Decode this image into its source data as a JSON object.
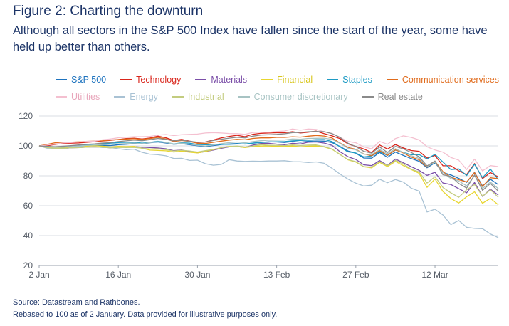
{
  "header": {
    "title": "Figure 2: Charting the downturn",
    "subtitle": "Although all sectors in the S&P 500 Index have fallen since the start of the year, some have held up better than others."
  },
  "footer": {
    "source": "Source: Datastream and Rathbones.",
    "note": "Rebased to 100 as of 2 January. Data provided for illustrative purposes only."
  },
  "chart_data": {
    "type": "line",
    "title": "",
    "xlabel": "",
    "ylabel": "",
    "ylim": [
      20,
      120
    ],
    "yticks": [
      20,
      40,
      60,
      80,
      100,
      120
    ],
    "x_tick_labels": [
      "2 Jan",
      "16 Jan",
      "30 Jan",
      "13 Feb",
      "27 Feb",
      "12 Mar"
    ],
    "x_tick_positions": [
      0,
      10,
      20,
      30,
      40,
      50
    ],
    "grid": "horizontal",
    "legend_placement": "top",
    "series": [
      {
        "name": "S&P 500",
        "color": "#1e73be",
        "values": [
          100,
          99,
          98.5,
          98.8,
          99.2,
          99.6,
          99.9,
          100.3,
          100.4,
          100.2,
          100.8,
          101.1,
          101.5,
          101.3,
          102.1,
          102.6,
          101.9,
          101.1,
          101.5,
          100.8,
          100.1,
          99.5,
          100.2,
          100.9,
          101.3,
          101.6,
          101.2,
          101.9,
          102.4,
          102.7,
          102.6,
          102.3,
          102.9,
          102.5,
          103.1,
          103.3,
          103.2,
          102.2,
          99.6,
          96.6,
          95.1,
          91.9,
          91.8,
          95.6,
          92.4,
          95.9,
          93.6,
          91.5,
          89.7,
          85.4,
          88.7,
          82.3,
          80.6,
          78.3,
          75.6,
          82.3,
          73.2,
          77.7,
          74.1
        ]
      },
      {
        "name": "Technology",
        "color": "#d9261c",
        "values": [
          100,
          100.1,
          101,
          101.6,
          101.8,
          102,
          102.4,
          102.8,
          103.3,
          103.7,
          104.3,
          104.9,
          105.2,
          104.6,
          105.3,
          106.5,
          105.5,
          103.6,
          104.4,
          103.2,
          102.2,
          102.6,
          104,
          105.4,
          106.4,
          107.1,
          106.2,
          107.8,
          108.4,
          108.6,
          108.8,
          108.8,
          109.5,
          108.6,
          109.2,
          109.9,
          108.2,
          106.7,
          104.9,
          101.4,
          99.6,
          98,
          95.5,
          100.6,
          97.9,
          100.9,
          98.6,
          96.9,
          96.4,
          91.9,
          93.6,
          86.7,
          86.7,
          83.4,
          80.8,
          88.2,
          78.2,
          82.2,
          79.2
        ]
      },
      {
        "name": "Materials",
        "color": "#7b4fa8",
        "values": [
          100,
          98.8,
          98.4,
          98.3,
          98.7,
          98.9,
          99.2,
          99.3,
          99.1,
          98.7,
          99.2,
          99.3,
          99.5,
          99.1,
          98.9,
          98.6,
          98.1,
          96.8,
          97.3,
          96.2,
          95.4,
          96.2,
          97.2,
          98.4,
          99.4,
          99.5,
          99,
          100.5,
          101.6,
          101.7,
          101.2,
          100.8,
          101.7,
          101.3,
          102.5,
          102.6,
          101.9,
          100.4,
          96.1,
          92.8,
          90.9,
          87.4,
          86.8,
          90.2,
          87,
          91.2,
          88.7,
          86.1,
          83.6,
          80.3,
          82.4,
          75.2,
          74.2,
          71.4,
          68.6,
          75.5,
          66.2,
          71,
          67.1
        ]
      },
      {
        "name": "Financial",
        "color": "#e8d630",
        "values": [
          100,
          99.1,
          98.5,
          98.6,
          99,
          99.5,
          99.8,
          100.1,
          99.8,
          99.3,
          99.7,
          99.5,
          99.7,
          98.4,
          97.2,
          97,
          96.7,
          95.9,
          96.5,
          95.8,
          95.3,
          96.3,
          97.5,
          98.8,
          99.7,
          99.6,
          98.9,
          99.6,
          99.9,
          99.9,
          99.7,
          99.6,
          99.9,
          99.4,
          99.8,
          99.9,
          99.3,
          97.7,
          94.4,
          90.7,
          89.2,
          86.1,
          85.3,
          89,
          86.2,
          89.6,
          86.8,
          84.2,
          81.6,
          72.3,
          77.9,
          69.5,
          64.8,
          61.8,
          66,
          69.3,
          61.6,
          64.9,
          60.6
        ]
      },
      {
        "name": "Staples",
        "color": "#1e9bc4",
        "values": [
          100,
          99.7,
          99.3,
          99.5,
          99.9,
          100.5,
          100.8,
          101.1,
          101.5,
          101.8,
          102.2,
          102.4,
          102.5,
          101.8,
          102.4,
          103.1,
          102.4,
          101.3,
          102.1,
          101.8,
          100.9,
          100.8,
          100.8,
          101,
          101,
          101.3,
          101.3,
          101.8,
          102.2,
          102.6,
          102.8,
          102.9,
          103.4,
          103.6,
          103.8,
          104.2,
          104.3,
          102.9,
          99.4,
          96,
          95.3,
          92.6,
          93.3,
          96.2,
          93.6,
          97.2,
          95.7,
          94.1,
          94.2,
          91.3,
          94.4,
          89.2,
          84.2,
          84.6,
          80.2,
          87.7,
          78.7,
          84.5,
          77.4
        ]
      },
      {
        "name": "Communication services",
        "color": "#e06b1c",
        "values": [
          100,
          101,
          102.1,
          102.4,
          102.5,
          102.7,
          103,
          103.3,
          103.5,
          103.9,
          104.3,
          104.6,
          104.8,
          104.4,
          104.9,
          105.7,
          104.7,
          103,
          103.6,
          102.9,
          101.7,
          101.6,
          102.4,
          103.2,
          103.9,
          104.4,
          104.1,
          105,
          105.4,
          105.4,
          105.7,
          105.7,
          106.1,
          105.9,
          106.5,
          107,
          106.6,
          105.3,
          101.9,
          98.9,
          97.7,
          94.6,
          93.5,
          96.9,
          93.7,
          97.3,
          95.3,
          92.5,
          90.7,
          85.8,
          89.7,
          82.8,
          79.1,
          77.4,
          75.9,
          82.1,
          72.8,
          78.7,
          78.1
        ]
      },
      {
        "name": "Utilities",
        "color": "#f4c0d0",
        "values": [
          100,
          100.5,
          101.3,
          102,
          102.2,
          102.6,
          103.1,
          103.2,
          104.1,
          104.6,
          105.5,
          105.8,
          106.2,
          106.2,
          106.4,
          107.2,
          107.6,
          106.9,
          107.5,
          107.7,
          107.9,
          108.6,
          108.9,
          108.6,
          108.3,
          108.2,
          107.7,
          109,
          109.2,
          109.1,
          109.6,
          110,
          111.3,
          110.5,
          111.3,
          111,
          109.5,
          108.3,
          105.7,
          103,
          102.1,
          99.3,
          98.1,
          103,
          101.1,
          104.9,
          106.7,
          105.7,
          104,
          99.4,
          97.3,
          95.8,
          92.3,
          90.5,
          84.2,
          91.2,
          83.3,
          86.8,
          86.2
        ]
      },
      {
        "name": "Energy",
        "color": "#a9c2d4",
        "values": [
          100,
          98.5,
          98.4,
          97.9,
          99,
          99.6,
          99.2,
          99.5,
          98.9,
          98.9,
          98.1,
          97.5,
          97.8,
          95.7,
          94.5,
          94.1,
          93.4,
          91.6,
          91.7,
          90.3,
          90.5,
          88.1,
          87.1,
          87.6,
          90.8,
          89.9,
          89.6,
          89.8,
          89.7,
          89.9,
          89.9,
          90.1,
          89.5,
          89.4,
          88.9,
          89.3,
          88.4,
          85,
          81.2,
          77.8,
          75.1,
          73.2,
          73.7,
          77.7,
          75.4,
          77.5,
          75.8,
          71.7,
          69.7,
          55.8,
          57.6,
          53.8,
          47.4,
          50.1,
          45.5,
          44.8,
          44.6,
          41.1,
          38.6
        ]
      },
      {
        "name": "Industrial",
        "color": "#c3cc7f",
        "values": [
          100,
          98.8,
          98.4,
          98.4,
          98.7,
          98.8,
          99.2,
          99.3,
          99.2,
          98.7,
          99,
          98.9,
          99,
          98.5,
          97.9,
          98.1,
          97.5,
          96.6,
          97.1,
          96.6,
          95.9,
          96.8,
          97.6,
          98.8,
          99.5,
          99.9,
          99.2,
          99.9,
          100.8,
          100.4,
          100.4,
          100.2,
          100.6,
          100.3,
          100.5,
          100.6,
          99.5,
          97.9,
          94.2,
          90.9,
          89.5,
          86.1,
          85.8,
          89.5,
          86.8,
          90.3,
          87.9,
          84.4,
          82.6,
          75.2,
          79.4,
          72.2,
          68.6,
          65.6,
          70.6,
          74.2,
          66.4,
          70.6,
          65.6
        ]
      },
      {
        "name": "Consumer discretionary",
        "color": "#a7c3c3",
        "values": [
          100,
          99.5,
          99.1,
          99.2,
          99.6,
          100,
          100.3,
          100.6,
          100.9,
          101.1,
          101.4,
          101.6,
          101.9,
          101.5,
          102.2,
          102.8,
          102.3,
          101.3,
          101.8,
          101.2,
          100.4,
          99.9,
          100.6,
          101.5,
          102.2,
          102.6,
          102.1,
          102.9,
          103.5,
          103.8,
          103.9,
          104,
          104.6,
          104.5,
          105,
          105.1,
          105.2,
          104.4,
          101.7,
          98.5,
          97.4,
          94.5,
          94.2,
          97.6,
          94.7,
          98.1,
          95.6,
          93.5,
          91.6,
          86.3,
          89,
          82.2,
          78.2,
          76.5,
          73.3,
          80.1,
          71.5,
          75.8,
          71.4
        ]
      },
      {
        "name": "Real estate",
        "color": "#8a8a8a",
        "values": [
          100,
          99.6,
          99.4,
          99.8,
          100.2,
          100.6,
          101,
          101.4,
          101.9,
          102.2,
          102.9,
          103.4,
          103.9,
          103.5,
          104.2,
          105,
          104.4,
          103.4,
          103.9,
          103.1,
          102.5,
          102.6,
          103.6,
          104.5,
          105.2,
          105.8,
          105.4,
          106.5,
          107.3,
          107.5,
          107.7,
          108.1,
          108.9,
          109,
          109.5,
          109.7,
          109.5,
          108.2,
          105.7,
          101.8,
          99.5,
          96.4,
          95.2,
          99.3,
          95.6,
          99.6,
          98,
          95.6,
          92.7,
          86.6,
          89.9,
          80.7,
          79.6,
          74.9,
          71.8,
          80.6,
          70.3,
          74.9,
          69.7
        ]
      }
    ]
  }
}
